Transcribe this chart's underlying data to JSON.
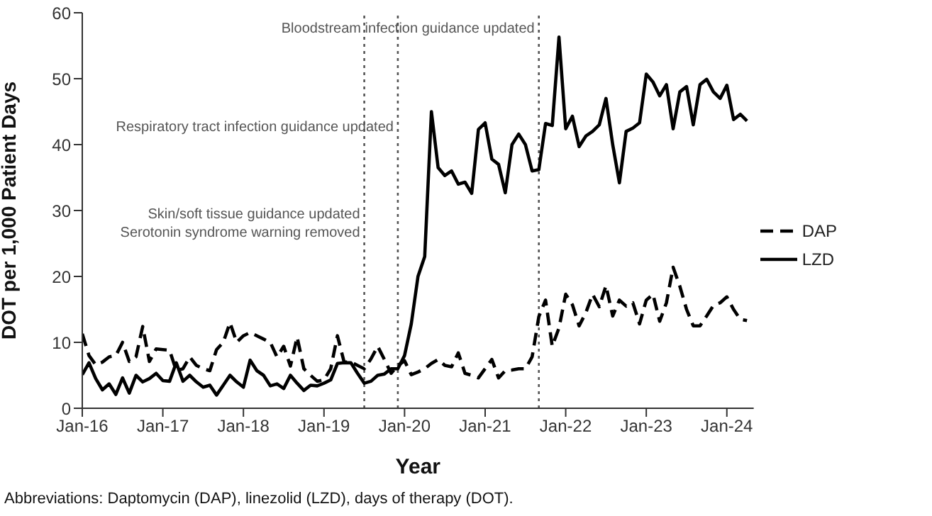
{
  "chart_data": {
    "type": "line",
    "xlabel": "Year",
    "ylabel": "DOT per 1,000 Patient Days",
    "x": [
      "2016-01",
      "2016-02",
      "2016-03",
      "2016-04",
      "2016-05",
      "2016-06",
      "2016-07",
      "2016-08",
      "2016-09",
      "2016-10",
      "2016-11",
      "2016-12",
      "2017-01",
      "2017-02",
      "2017-03",
      "2017-04",
      "2017-05",
      "2017-06",
      "2017-07",
      "2017-08",
      "2017-09",
      "2017-10",
      "2017-11",
      "2017-12",
      "2018-01",
      "2018-02",
      "2018-03",
      "2018-04",
      "2018-05",
      "2018-06",
      "2018-07",
      "2018-08",
      "2018-09",
      "2018-10",
      "2018-11",
      "2018-12",
      "2019-01",
      "2019-02",
      "2019-03",
      "2019-04",
      "2019-05",
      "2019-06",
      "2019-07",
      "2019-08",
      "2019-09",
      "2019-10",
      "2019-11",
      "2019-12",
      "2020-01",
      "2020-02",
      "2020-03",
      "2020-04",
      "2020-05",
      "2020-06",
      "2020-07",
      "2020-08",
      "2020-09",
      "2020-10",
      "2020-11",
      "2020-12",
      "2021-01",
      "2021-02",
      "2021-03",
      "2021-04",
      "2021-05",
      "2021-06",
      "2021-07",
      "2021-08",
      "2021-09",
      "2021-10",
      "2021-11",
      "2021-12",
      "2022-01",
      "2022-02",
      "2022-03",
      "2022-04",
      "2022-05",
      "2022-06",
      "2022-07",
      "2022-08",
      "2022-09",
      "2022-10",
      "2022-11",
      "2022-12",
      "2023-01",
      "2023-02",
      "2023-03",
      "2023-04",
      "2023-05",
      "2023-06",
      "2023-07",
      "2023-08",
      "2023-09",
      "2023-10",
      "2023-11",
      "2023-12",
      "2024-01",
      "2024-02",
      "2024-03",
      "2024-04"
    ],
    "series": [
      {
        "name": "DAP",
        "color": "#000000",
        "line_style": "dashed",
        "values": [
          11.3,
          8,
          6.6,
          7,
          7.8,
          8,
          10,
          7.1,
          7.8,
          12.4,
          7.1,
          9,
          8.9,
          8.8,
          5.7,
          6,
          7.8,
          6.5,
          6,
          5.7,
          8.9,
          10,
          13,
          10,
          11,
          11.5,
          11,
          10.5,
          10,
          7.8,
          9.4,
          6.4,
          10.8,
          6,
          5,
          4.1,
          4.3,
          6,
          11,
          7,
          7,
          6.5,
          6,
          7.5,
          9.4,
          7.4,
          5.3,
          6.5,
          7.2,
          5.1,
          5.5,
          6,
          6.8,
          7.4,
          6.5,
          6.3,
          8.4,
          5.3,
          5,
          4.6,
          6,
          7.4,
          4.6,
          5.7,
          5.8,
          6,
          6,
          7.8,
          13.9,
          16.4,
          9.4,
          12.2,
          17.3,
          15.7,
          12.5,
          14.5,
          17.3,
          15.4,
          18.6,
          14,
          16.4,
          15.5,
          16,
          12.8,
          16.4,
          17.3,
          13.2,
          16,
          21.4,
          18.5,
          15,
          12.5,
          12.5,
          14,
          15.6,
          16,
          16.9,
          15,
          13.5,
          13.3
        ]
      },
      {
        "name": "LZD",
        "color": "#000000",
        "line_style": "solid",
        "values": [
          5.1,
          6.9,
          4.5,
          2.8,
          3.7,
          2.1,
          4.6,
          2.3,
          5,
          4,
          4.5,
          5.3,
          4.2,
          4.1,
          6.9,
          4.1,
          5,
          4,
          3.2,
          3.5,
          2,
          3.5,
          5,
          4,
          3.2,
          7.3,
          5.7,
          5,
          3.4,
          3.7,
          3,
          5,
          3.8,
          2.7,
          3.5,
          3.4,
          3.8,
          4.3,
          6.8,
          6.9,
          6.9,
          5.3,
          3.8,
          4.1,
          5,
          5.2,
          6,
          6,
          8,
          12.8,
          20,
          23,
          45,
          36.5,
          35.3,
          36,
          34,
          34.3,
          32.6,
          42.3,
          43.3,
          37.8,
          37,
          32.7,
          40,
          41.6,
          40,
          36,
          36.2,
          43.2,
          42.9,
          56.3,
          42.4,
          44.3,
          39.7,
          41.3,
          42,
          43,
          47,
          40,
          34.2,
          42,
          42.5,
          43.3,
          50.7,
          49.5,
          47.4,
          49.1,
          42.4,
          48,
          48.8,
          43,
          49.1,
          49.9,
          48,
          47,
          49,
          43.8,
          44.6,
          43.6
        ]
      }
    ],
    "xlim": [
      "2016-01",
      "2024-05"
    ],
    "xticks": [
      {
        "value": "2016-01",
        "label": "Jan-16"
      },
      {
        "value": "2017-01",
        "label": "Jan-17"
      },
      {
        "value": "2018-01",
        "label": "Jan-18"
      },
      {
        "value": "2019-01",
        "label": "Jan-19"
      },
      {
        "value": "2020-01",
        "label": "Jan-20"
      },
      {
        "value": "2021-01",
        "label": "Jan-21"
      },
      {
        "value": "2022-01",
        "label": "Jan-22"
      },
      {
        "value": "2023-01",
        "label": "Jan-23"
      },
      {
        "value": "2024-01",
        "label": "Jan-24"
      }
    ],
    "ylim": [
      0,
      60
    ],
    "yticks": [
      0,
      10,
      20,
      30,
      40,
      50,
      60
    ],
    "ref_lines": [
      {
        "axis": "x",
        "value": "2019-07",
        "label": "Skin/soft tissue guidance updated\nSerotonin syndrome warning removed",
        "color": "#555555",
        "line_style": "dotted"
      },
      {
        "axis": "x",
        "value": "2019-12",
        "label": "Respiratory tract infection guidance updated",
        "color": "#555555",
        "line_style": "dotted"
      },
      {
        "axis": "x",
        "value": "2021-09",
        "label": "Bloodstream infection guidance updated",
        "color": "#555555",
        "line_style": "dotted"
      }
    ],
    "annotations": [
      "Abbreviations: Daptomycin (DAP), linezolid (LZD), days of therapy (DOT)."
    ],
    "legend": "right",
    "grid": false,
    "marker": "none"
  }
}
